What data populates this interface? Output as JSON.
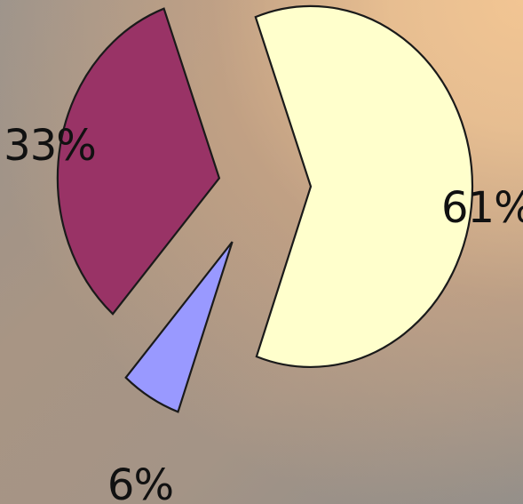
{
  "chart_data": {
    "type": "pie",
    "exploded": true,
    "values": [
      61,
      6,
      33
    ],
    "labels": [
      "61%",
      "6%",
      "33%"
    ],
    "colors": [
      "#ffffcc",
      "#9999ff",
      "#993366"
    ],
    "title": ""
  }
}
